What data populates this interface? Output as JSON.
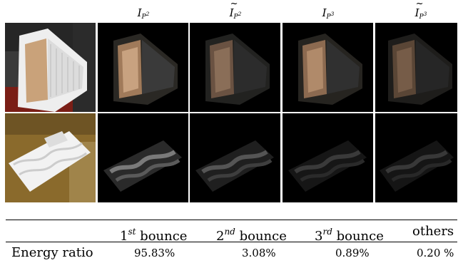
{
  "figure": {
    "columns": [
      {
        "base": "I",
        "sub": "P",
        "exp": "2",
        "tilde": false
      },
      {
        "base": "I",
        "sub": "P",
        "exp": "2",
        "tilde": true
      },
      {
        "base": "I",
        "sub": "P",
        "exp": "3",
        "tilde": false
      },
      {
        "base": "I",
        "sub": "P",
        "exp": "3",
        "tilde": true
      }
    ],
    "rows": [
      "box-object",
      "wavy-board-object"
    ],
    "colors": {
      "background": "#000000",
      "divider": "#ffffff",
      "photo_floor": "#5b1a14",
      "photo_wall": "#b48a3a"
    }
  },
  "table": {
    "headers": [
      {
        "num": "1",
        "sup": "st",
        "word": "bounce"
      },
      {
        "num": "2",
        "sup": "nd",
        "word": "bounce"
      },
      {
        "num": "3",
        "sup": "rd",
        "word": "bounce"
      },
      {
        "num": "",
        "sup": "",
        "word": "others"
      }
    ],
    "row_label": "Energy ratio",
    "values": [
      "95.83%",
      "3.08%",
      "0.89%",
      "0.20 %"
    ]
  }
}
